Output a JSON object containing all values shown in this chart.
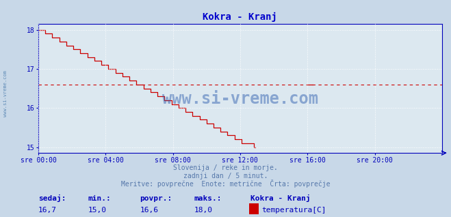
{
  "title": "Kokra - Kranj",
  "title_color": "#0000cc",
  "bg_color": "#c8d8e8",
  "plot_bg_color": "#dce8f0",
  "grid_color": "#ffffff",
  "axis_color": "#0000bb",
  "tick_color": "#0000bb",
  "line_color": "#cc0000",
  "avg_value": 16.6,
  "ylim": [
    14.85,
    18.15
  ],
  "yticks": [
    15,
    16,
    17,
    18
  ],
  "xtick_labels": [
    "sre 00:00",
    "sre 04:00",
    "sre 08:00",
    "sre 12:00",
    "sre 16:00",
    "sre 20:00"
  ],
  "xtick_positions": [
    0,
    48,
    96,
    144,
    192,
    240
  ],
  "total_points": 288,
  "footer_line1": "Slovenija / reke in morje.",
  "footer_line2": "zadnji dan / 5 minut.",
  "footer_line3": "Meritve: povprečne  Enote: metrične  Črta: povprečje",
  "footer_color": "#5577aa",
  "label_sedaj": "sedaj:",
  "label_min": "min.:",
  "label_povpr": "povpr.:",
  "label_maks": "maks.:",
  "val_sedaj": "16,7",
  "val_min": "15,0",
  "val_povpr": "16,6",
  "val_maks": "18,0",
  "station_name": "Kokra - Kranj",
  "series_label": "temperatura[C]",
  "label_color": "#0000bb",
  "val_color": "#0000bb",
  "watermark": "www.si-vreme.com",
  "watermark_color": "#2255aa",
  "sidebar_text": "www.si-vreme.com",
  "sidebar_color": "#4477aa",
  "n_main": 155,
  "bump_start": 148,
  "bump_end": 154,
  "bump_val": 15.1,
  "isolated_idx": 193,
  "isolated_val": 16.6
}
